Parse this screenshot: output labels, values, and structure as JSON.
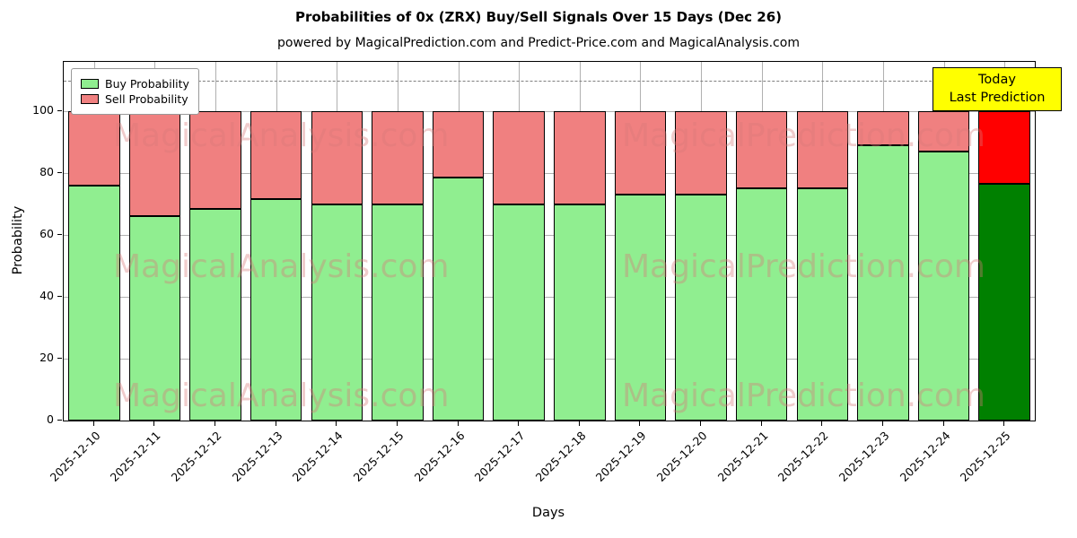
{
  "title": "Probabilities of 0x (ZRX) Buy/Sell Signals Over 15 Days (Dec 26)",
  "subtitle": "powered by MagicalPrediction.com and Predict-Price.com and MagicalAnalysis.com",
  "legend": {
    "buy_label": "Buy Probability",
    "sell_label": "Sell Probability"
  },
  "annotation": {
    "line1": "Today",
    "line2": "Last Prediction",
    "bg_color": "#ffff00"
  },
  "watermarks": {
    "left": "MagicalAnalysis.com",
    "right": "MagicalPrediction.com"
  },
  "chart_data": {
    "type": "bar",
    "stacked": true,
    "title": "Probabilities of 0x (ZRX) Buy/Sell Signals Over 15 Days (Dec 26)",
    "xlabel": "Days",
    "ylabel": "Probability",
    "categories": [
      "2025-12-10",
      "2025-12-11",
      "2025-12-12",
      "2025-12-13",
      "2025-12-14",
      "2025-12-15",
      "2025-12-16",
      "2025-12-17",
      "2025-12-18",
      "2025-12-19",
      "2025-12-20",
      "2025-12-21",
      "2025-12-22",
      "2025-12-23",
      "2025-12-24",
      "2025-12-25"
    ],
    "series": [
      {
        "name": "Buy Probability",
        "color": "#90ee90",
        "values": [
          76,
          66,
          68.5,
          71.5,
          70,
          70,
          78.5,
          70,
          70,
          73,
          73,
          75,
          75,
          89,
          87,
          76.5
        ]
      },
      {
        "name": "Sell Probability",
        "color": "#f08080",
        "values": [
          24,
          34,
          31.5,
          28.5,
          30,
          30,
          21.5,
          30,
          30,
          27,
          27,
          25,
          25,
          11,
          13,
          23.5
        ]
      }
    ],
    "highlight": {
      "index": 15,
      "buy_color": "#008000",
      "sell_color": "#ff0000"
    },
    "yticks": [
      0,
      20,
      40,
      60,
      80,
      100
    ],
    "ylim": [
      0,
      116
    ],
    "dashed_line_y": 110,
    "grid": true,
    "legend_position": "upper left",
    "bar_edge_color": "#000000"
  }
}
